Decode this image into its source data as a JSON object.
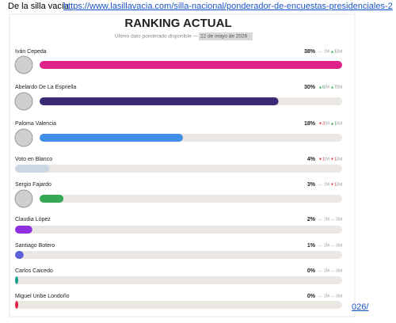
{
  "header": {
    "source": "De  la silla vacía",
    "link": "https://www.lasillavacia.com/silla-nacional/ponderador-de-encuestas-presidenciales-2"
  },
  "footer": {
    "link": "026/"
  },
  "chart_data": {
    "type": "bar",
    "title": "RANKING ACTUAL",
    "subtitle": "Último dato ponderado disponible —",
    "date": "22 de mayo de 2026",
    "categories": [
      "Iván Cepeda",
      "Abelardo De La Espriella",
      "Paloma Valencia",
      "Voto en Blanco",
      "Sergio Fajardo",
      "Claudia López",
      "Santiago Botero",
      "Carlos Caicedo",
      "Miguel Uribe Londoño"
    ],
    "values": [
      38,
      30,
      18,
      4,
      3,
      2,
      1,
      0,
      0
    ],
    "value_labels": [
      "38%",
      "30%",
      "18%",
      "4%",
      "3%",
      "2%",
      "1%",
      "0%",
      "0%"
    ],
    "colors": [
      "#e0218a",
      "#3d2a74",
      "#3f8fe6",
      "#cbd8e4",
      "#34a853",
      "#8e2fe0",
      "#5b5fd8",
      "#17a08c",
      "#e2234c"
    ],
    "changes_1m": [
      "—",
      "▲6",
      "▼3",
      "▼1",
      "—",
      "—",
      "—",
      "—",
      "—"
    ],
    "changes_30d": [
      "▲1",
      "▲7",
      "▲1",
      "▼1",
      "▼1",
      "—",
      "—",
      "—",
      "—"
    ],
    "change_labels": [
      "1M",
      "30d"
    ],
    "xlim": [
      0,
      38
    ]
  }
}
